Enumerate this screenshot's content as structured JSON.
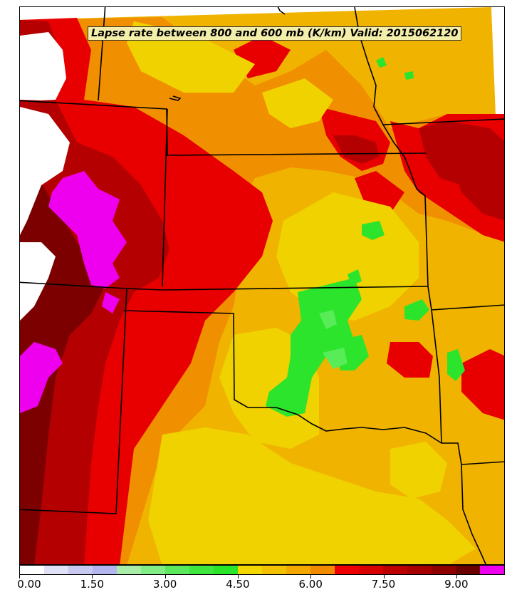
{
  "title": "Lapse rate between 800 and 600 mb (K/km) Valid: 2015062120",
  "colorbar": {
    "min": 0.0,
    "max": 10.0,
    "step": 0.5,
    "tick_labels": [
      "0.00",
      "1.50",
      "3.00",
      "4.50",
      "6.00",
      "7.50",
      "9.00"
    ],
    "tick_values": [
      0,
      1.5,
      3.0,
      4.5,
      6.0,
      7.5,
      9.0
    ],
    "colors": [
      "#ffffff",
      "#e0e0f6",
      "#c8c8f0",
      "#b4b4ee",
      "#a8eea8",
      "#84ec84",
      "#5ce85c",
      "#3ee63e",
      "#2ae42a",
      "#f2d800",
      "#f2c200",
      "#f2a800",
      "#f28a00",
      "#ee0000",
      "#d80000",
      "#bc0000",
      "#a60000",
      "#8e0000",
      "#6a0000",
      "#ee00ee"
    ]
  },
  "palette": {
    "light_green": "#58ec58",
    "green": "#2ce42c",
    "yellow": "#f0d200",
    "gold": "#f0b400",
    "orange": "#f09000",
    "red": "#e80000",
    "dark_red": "#b40000",
    "maroon": "#7c0000",
    "magenta": "#ee00ee",
    "border": "#000000"
  }
}
